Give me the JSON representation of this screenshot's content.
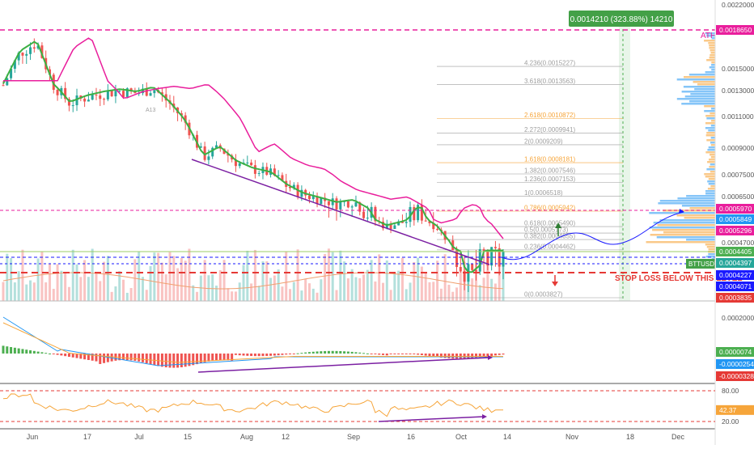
{
  "price_panel": {
    "gain_badge": "0.0014210 (323.88%) 14210",
    "ath_label": "ATH",
    "stop_loss_label": "STOP LOSS BELOW THIS LEVEL",
    "symbol_tag": "BTTUSDT",
    "watermark_left": "A13",
    "fib_levels": [
      {
        "label": "4.236(0.0015227)",
        "price": 0.0015227,
        "color": "#9e9e9e"
      },
      {
        "label": "3.618(0.0013563)",
        "price": 0.0013563,
        "color": "#9e9e9e"
      },
      {
        "label": "2.618(0.0010872)",
        "price": 0.0010872,
        "color": "#f6a53a"
      },
      {
        "label": "2.272(0.0009941)",
        "price": 0.0009941,
        "color": "#9e9e9e"
      },
      {
        "label": "2(0.0009209)",
        "price": 0.0009209,
        "color": "#9e9e9e"
      },
      {
        "label": "1.618(0.0008181)",
        "price": 0.0008181,
        "color": "#f6a53a"
      },
      {
        "label": "1.382(0.0007546)",
        "price": 0.0007546,
        "color": "#9e9e9e"
      },
      {
        "label": "1.236(0.0007153)",
        "price": 0.0007153,
        "color": "#9e9e9e"
      },
      {
        "label": "1(0.0006518)",
        "price": 0.0006518,
        "color": "#9e9e9e"
      },
      {
        "label": "0.786(0.0005942)",
        "price": 0.0005942,
        "color": "#f6a53a"
      },
      {
        "label": "0.618(0.0005490)",
        "price": 0.000549,
        "color": "#9e9e9e"
      },
      {
        "label": "0.5(0.0005173)",
        "price": 0.0005173,
        "color": "#9e9e9e"
      },
      {
        "label": "0.382(0.0004855)",
        "price": 0.0004855,
        "color": "#9e9e9e"
      },
      {
        "label": "0.236(0.0004462)",
        "price": 0.0004462,
        "color": "#9e9e9e"
      },
      {
        "label": "0(0.0003827)",
        "price": 0.0003827,
        "color": "#9e9e9e"
      }
    ],
    "axis_ticks": [
      {
        "label": "0.0022000",
        "price": 0.0022
      },
      {
        "label": "0.0015000",
        "price": 0.0015
      },
      {
        "label": "0.0013000",
        "price": 0.0013
      },
      {
        "label": "0.0011000",
        "price": 0.0011
      },
      {
        "label": "0.0009000",
        "price": 0.0009
      },
      {
        "label": "0.0007500",
        "price": 0.00075
      },
      {
        "label": "0.0006500",
        "price": 0.00065
      },
      {
        "label": "0.0004700",
        "price": 0.00047
      }
    ],
    "axis_tags": [
      {
        "label": "0.0018650",
        "price": 0.001865,
        "bg": "#e91e9c",
        "fg": "#ffffff"
      },
      {
        "label": "0.0005970",
        "price": 0.000597,
        "bg": "#e91e9c",
        "fg": "#ffffff"
      },
      {
        "label": "0.0005849",
        "price": 0.0005849,
        "bg": "#2196f3",
        "fg": "#ffffff"
      },
      {
        "label": "0.0005296",
        "price": 0.0005296,
        "bg": "#e91e9c",
        "fg": "#ffffff"
      },
      {
        "label": "0.0004405",
        "price": 0.0004405,
        "bg": "#4caf50",
        "fg": "#ffffff"
      },
      {
        "label": "0.0004397",
        "price": 0.0004397,
        "bg": "#26a69a",
        "fg": "#ffffff"
      },
      {
        "label": "0.0004227",
        "price": 0.0004227,
        "bg": "#1a1aff",
        "fg": "#ffffff"
      },
      {
        "label": "0.0004071",
        "price": 0.0004071,
        "bg": "#1a1aff",
        "fg": "#ffffff"
      },
      {
        "label": "0.0003835",
        "price": 0.0003835,
        "bg": "#e53935",
        "fg": "#ffffff"
      }
    ]
  },
  "macd_panel": {
    "axis_ticks": [
      {
        "label": "0.0002000",
        "value": 0.0002
      }
    ],
    "tags": [
      {
        "label": "0.0000074",
        "value": 7.4e-06,
        "bg": "#4caf50"
      },
      {
        "label": "-0.0000254",
        "value": -2.54e-05,
        "bg": "#2196f3"
      },
      {
        "label": "-0.0000328",
        "value": -3.28e-05,
        "bg": "#e53935"
      }
    ]
  },
  "rsi_panel": {
    "axis_ticks": [
      {
        "label": "80.00",
        "value": 80
      },
      {
        "label": "20.00",
        "value": 20
      }
    ],
    "tag": {
      "label": "42.37",
      "value": 42.37,
      "bg": "#f6a53a"
    }
  },
  "time_axis": [
    "Jun",
    "17",
    "Jul",
    "15",
    "Aug",
    "12",
    "Sep",
    "16",
    "Oct",
    "14",
    "Nov",
    "18",
    "Dec"
  ],
  "chart_data": {
    "type": "line",
    "x_labels": [
      "Jun",
      "17",
      "Jul",
      "15",
      "Aug",
      "12",
      "Sep",
      "16",
      "Oct",
      "14",
      "Nov",
      "18",
      "Dec"
    ],
    "price_series": {
      "close_approx": [
        0.00135,
        0.00165,
        0.00175,
        0.00135,
        0.0012,
        0.00125,
        0.00128,
        0.0013,
        0.00128,
        0.00132,
        0.0012,
        0.00105,
        0.00085,
        0.0009,
        0.00082,
        0.00078,
        0.00076,
        0.0007,
        0.00066,
        0.00064,
        0.00062,
        0.00063,
        0.00059,
        0.00055,
        0.00057,
        0.0006,
        0.00055,
        0.00045,
        0.00042,
        0.00044,
        0.00044
      ]
    },
    "resistance_levels": [
      0.001865,
      0.000597
    ],
    "support_levels": [
      0.0004227,
      0.0004071,
      0.0003835
    ],
    "current_price": 0.0004405,
    "rsi_current": 42.37,
    "macd_values": [
      7.4e-06,
      -2.54e-05,
      -3.28e-05
    ]
  }
}
